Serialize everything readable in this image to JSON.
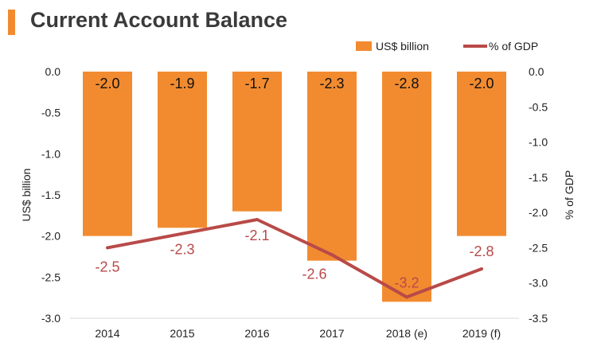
{
  "title": "Current Account Balance",
  "chart_data": {
    "type": "bar",
    "categories": [
      "2014",
      "2015",
      "2016",
      "2017",
      "2018 (e)",
      "2019 (f)"
    ],
    "series": [
      {
        "name": "US$ billion",
        "type": "bar",
        "axis": "left",
        "values": [
          -2.0,
          -1.9,
          -1.7,
          -2.3,
          -2.8,
          -2.0
        ],
        "labels": [
          "-2.0",
          "-1.9",
          "-1.7",
          "-2.3",
          "-2.8",
          "-2.0"
        ],
        "color": "#f28b30"
      },
      {
        "name": "% of GDP",
        "type": "line",
        "axis": "right",
        "values": [
          -2.5,
          -2.3,
          -2.1,
          -2.6,
          -3.2,
          -2.8
        ],
        "labels": [
          "-2.5",
          "-2.3",
          "-2.1",
          "-2.6",
          "-3.2",
          "-2.8"
        ],
        "color": "#b84a48"
      }
    ],
    "ylabel": "US$ billion",
    "y2label": "% of GDP",
    "ylim": [
      -3.0,
      0.0
    ],
    "y2lim": [
      -3.5,
      0.0
    ],
    "yticks": [
      "0.0",
      "-0.5",
      "-1.0",
      "-1.5",
      "-2.0",
      "-2.5",
      "-3.0"
    ],
    "y2ticks": [
      "0.0",
      "-0.5",
      "-1.0",
      "-1.5",
      "-2.0",
      "-2.5",
      "-3.0",
      "-3.5"
    ],
    "legend": "top-right",
    "grid": false
  }
}
